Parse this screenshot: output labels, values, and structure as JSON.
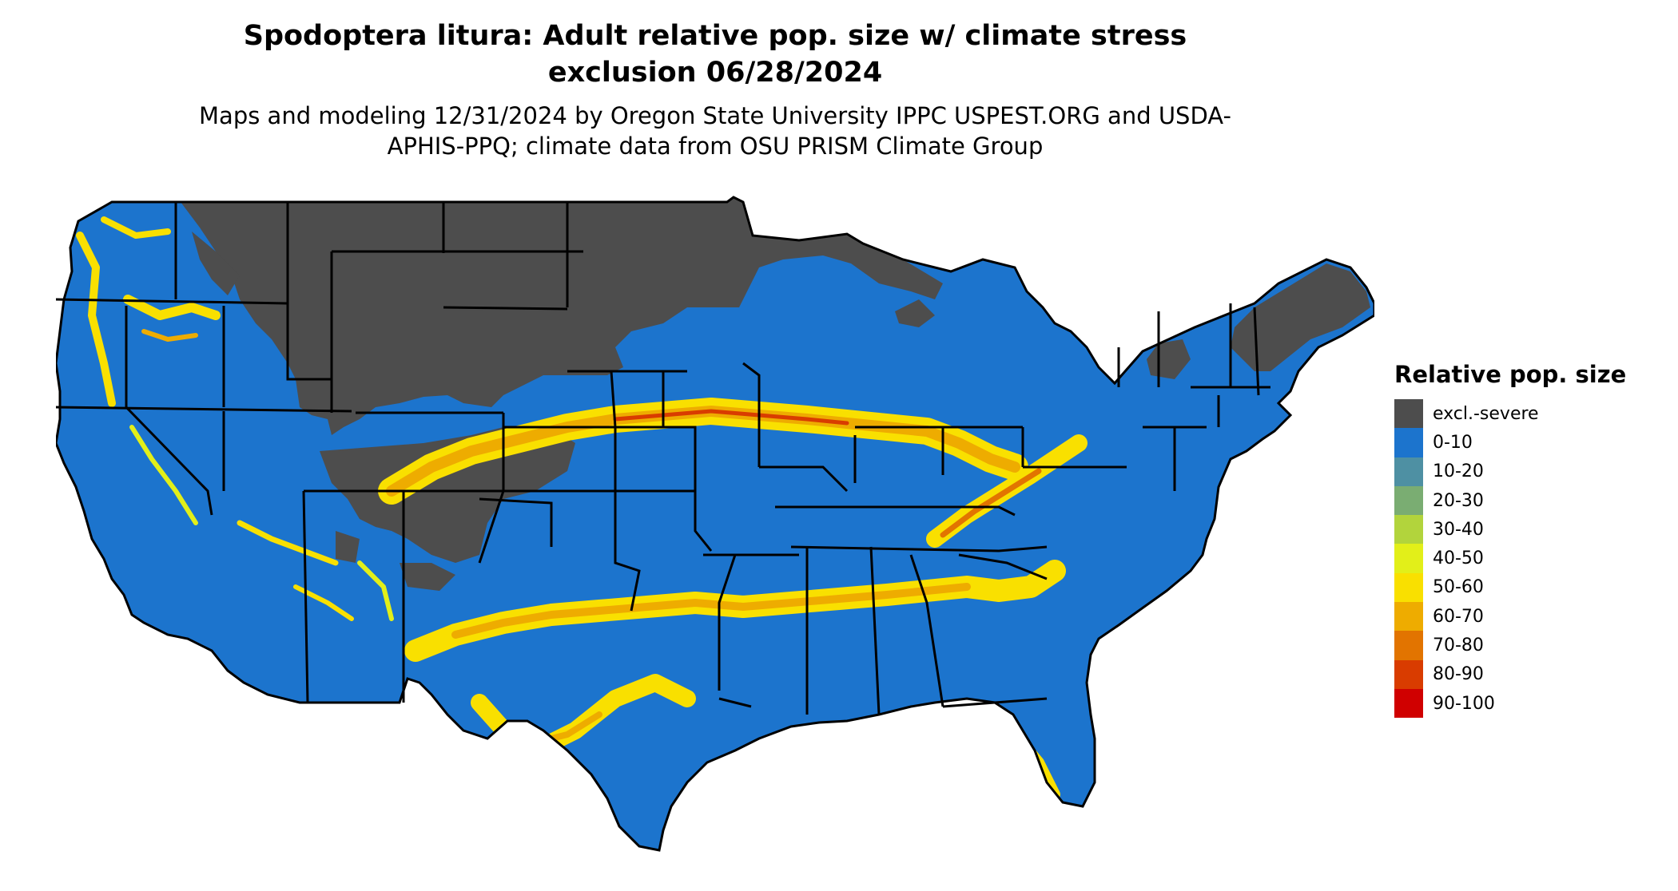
{
  "title": "Spodoptera litura: Adult relative pop. size w/ climate stress exclusion 06/28/2024",
  "subtitle": "Maps and modeling 12/31/2024 by Oregon State University IPPC USPEST.ORG and USDA-APHIS-PPQ; climate data from OSU PRISM Climate Group",
  "legend": {
    "title": "Relative pop. size",
    "items": [
      {
        "label": "excl.-severe",
        "color": "#4d4d4d"
      },
      {
        "label": "0-10",
        "color": "#1c74cd"
      },
      {
        "label": "10-20",
        "color": "#4e90a3"
      },
      {
        "label": "20-30",
        "color": "#7aad72"
      },
      {
        "label": "30-40",
        "color": "#b2d43c"
      },
      {
        "label": "40-50",
        "color": "#e2ef19"
      },
      {
        "label": "50-60",
        "color": "#f9e000"
      },
      {
        "label": "60-70",
        "color": "#eeac00"
      },
      {
        "label": "70-80",
        "color": "#e27400"
      },
      {
        "label": "80-90",
        "color": "#d93c00"
      },
      {
        "label": "90-100",
        "color": "#d00000"
      }
    ]
  }
}
